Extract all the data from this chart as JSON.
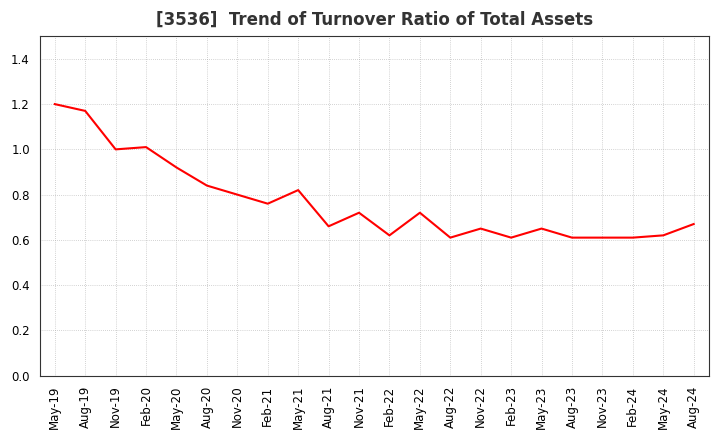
{
  "title": "[3536]  Trend of Turnover Ratio of Total Assets",
  "x_labels": [
    "May-19",
    "Aug-19",
    "Nov-19",
    "Feb-20",
    "May-20",
    "Aug-20",
    "Nov-20",
    "Feb-21",
    "May-21",
    "Aug-21",
    "Nov-21",
    "Feb-22",
    "May-22",
    "Aug-22",
    "Nov-22",
    "Feb-23",
    "May-23",
    "Aug-23",
    "Nov-23",
    "Feb-24",
    "May-24",
    "Aug-24"
  ],
  "y_values": [
    1.2,
    1.17,
    1.0,
    1.01,
    0.92,
    0.84,
    0.8,
    0.76,
    0.82,
    0.66,
    0.72,
    0.62,
    0.72,
    0.61,
    0.65,
    0.61,
    0.65,
    0.61,
    0.61,
    0.61,
    0.62,
    0.67
  ],
  "line_color": "#FF0000",
  "line_width": 1.5,
  "ylim": [
    0.0,
    1.5
  ],
  "yticks": [
    0.0,
    0.2,
    0.4,
    0.6,
    0.8,
    1.0,
    1.2,
    1.4
  ],
  "grid_color": "#aaaaaa",
  "bg_color": "#ffffff",
  "title_fontsize": 12,
  "tick_fontsize": 8.5,
  "title_color": "#333333"
}
